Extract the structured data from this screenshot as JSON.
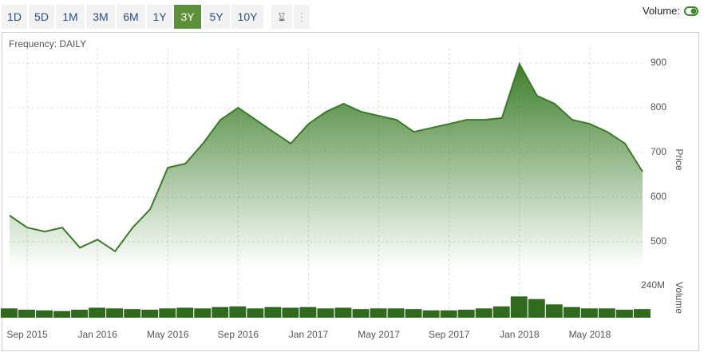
{
  "toolbar": {
    "ranges": [
      "1D",
      "5D",
      "1M",
      "3M",
      "6M",
      "1Y",
      "3Y",
      "5Y",
      "10Y"
    ],
    "active": 6,
    "volume_label": "Volume:"
  },
  "chart_data": {
    "type": "line",
    "frequency": "Frequency: DAILY",
    "x": [
      null,
      "Sep 2015",
      null,
      null,
      null,
      "Jan 2016",
      null,
      null,
      null,
      "May 2016",
      null,
      null,
      null,
      "Sep 2016",
      null,
      null,
      null,
      "Jan 2017",
      null,
      null,
      null,
      "May 2017",
      null,
      null,
      null,
      "Sep 2017",
      null,
      null,
      null,
      "Jan 2018",
      null,
      null,
      null,
      "May 2018",
      null,
      null,
      null
    ],
    "series": [
      {
        "name": "Price",
        "color": "#3a7a28",
        "values": [
          559,
          532,
          523,
          532,
          487,
          505,
          479,
          532,
          573,
          666,
          675,
          720,
          773,
          800,
          773,
          746,
          720,
          764,
          791,
          809,
          791,
          782,
          773,
          746,
          755,
          764,
          773,
          773,
          777,
          898,
          827,
          809,
          773,
          764,
          746,
          720,
          657
        ]
      },
      {
        "name": "Volume",
        "color": "#2f6a1e",
        "axis": "y2",
        "values": [
          70000000,
          60000000,
          55000000,
          50000000,
          60000000,
          75000000,
          70000000,
          65000000,
          60000000,
          70000000,
          75000000,
          70000000,
          80000000,
          85000000,
          70000000,
          80000000,
          75000000,
          80000000,
          70000000,
          75000000,
          65000000,
          70000000,
          70000000,
          65000000,
          55000000,
          55000000,
          60000000,
          70000000,
          85000000,
          160000000,
          140000000,
          100000000,
          80000000,
          70000000,
          70000000,
          60000000,
          65000000
        ]
      }
    ],
    "ylim": [
      440,
      960
    ],
    "yticks": [
      500,
      600,
      700,
      800,
      900
    ],
    "y2lim": [
      0,
      240000000
    ],
    "y2ticks": [
      {
        "value": 240000000,
        "label": "240M"
      }
    ],
    "ylabel": "Price",
    "y2label": "Volume",
    "grid": true
  }
}
